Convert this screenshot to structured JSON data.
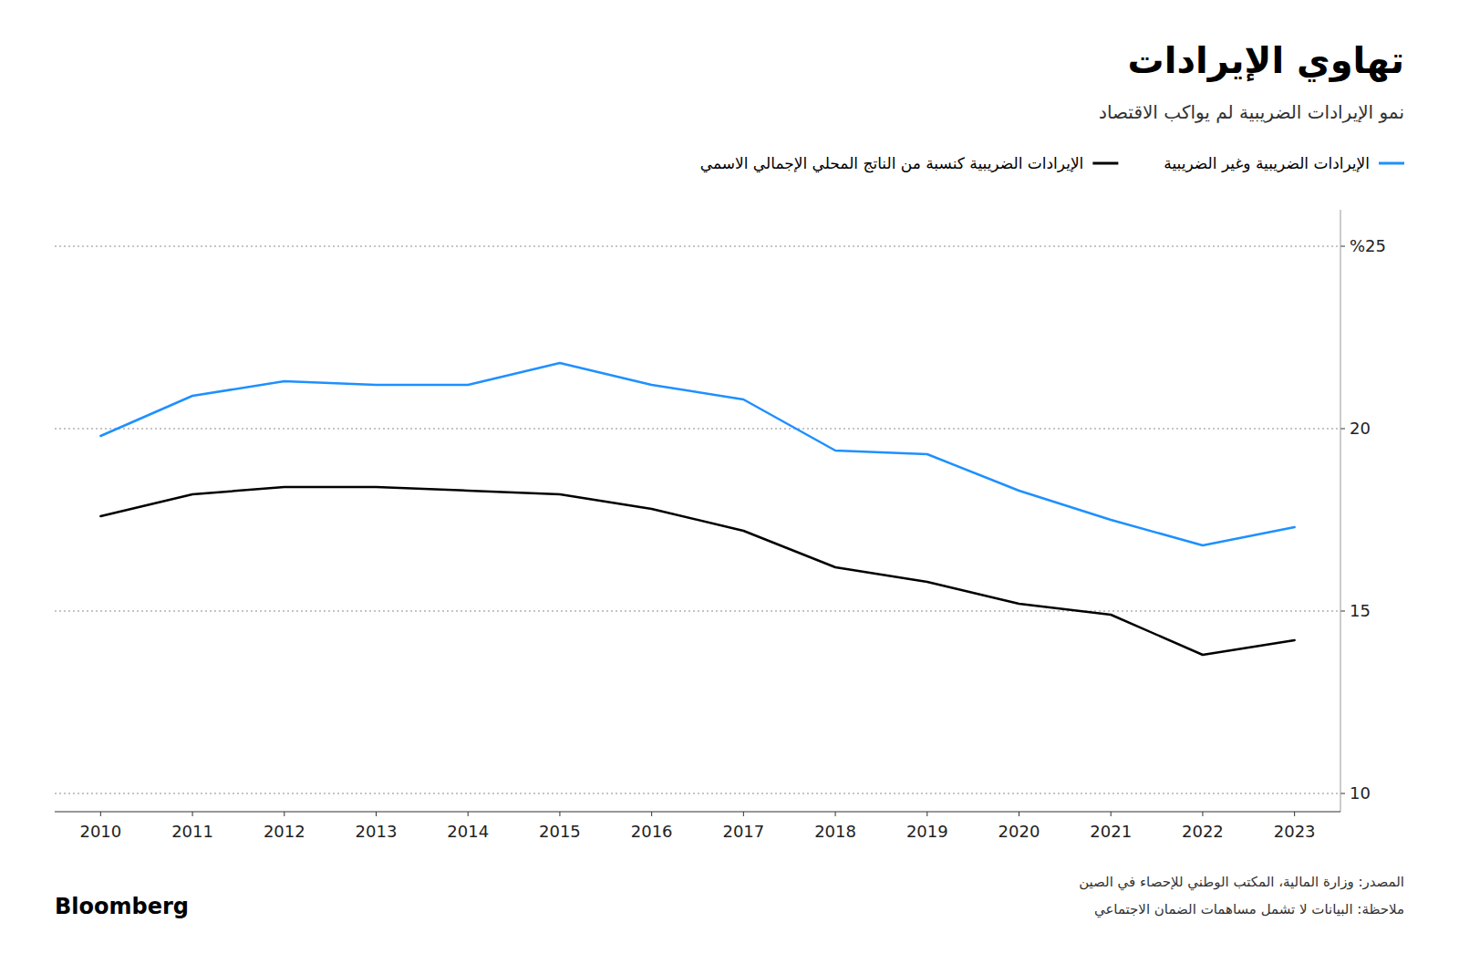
{
  "chart_data": {
    "type": "line",
    "title": "تهاوي الإيرادات",
    "subtitle": "نمو الإيرادات الضريبية لم يواكب الاقتصاد",
    "annotations": [
      "المصدر: وزارة المالية، المكتب الوطني للإحصاء في الصين",
      "ملاحظة: البيانات لا تشمل مساهمات الضمان الاجتماعي",
      "Bloomberg"
    ],
    "x": [
      2010,
      2011,
      2012,
      2013,
      2014,
      2015,
      2016,
      2017,
      2018,
      2019,
      2020,
      2021,
      2022,
      2023
    ],
    "series": [
      {
        "name": "الإيرادات الضريبية وغير الضريبية",
        "color": "#1E90FF",
        "values": [
          19.8,
          20.9,
          21.3,
          21.2,
          21.2,
          21.8,
          21.2,
          20.8,
          19.4,
          19.3,
          18.3,
          17.5,
          16.8,
          17.3
        ]
      },
      {
        "name": "الإيرادات الضريبية كنسبة من الناتج المحلي الإجمالي الاسمي",
        "color": "#000000",
        "values": [
          17.6,
          18.2,
          18.4,
          18.4,
          18.3,
          18.2,
          17.8,
          17.2,
          16.2,
          15.8,
          15.2,
          14.9,
          13.8,
          14.2
        ]
      }
    ],
    "xlim": [
      2009.5,
      2023.5
    ],
    "xticks": [
      2010,
      2011,
      2012,
      2013,
      2014,
      2015,
      2016,
      2017,
      2018,
      2019,
      2020,
      2021,
      2022,
      2023
    ],
    "ylim": [
      9.5,
      26.0
    ],
    "yticks": [
      10,
      15,
      20,
      {
        "value": 25,
        "label": "%25"
      }
    ],
    "grid": true,
    "legend": "top"
  }
}
